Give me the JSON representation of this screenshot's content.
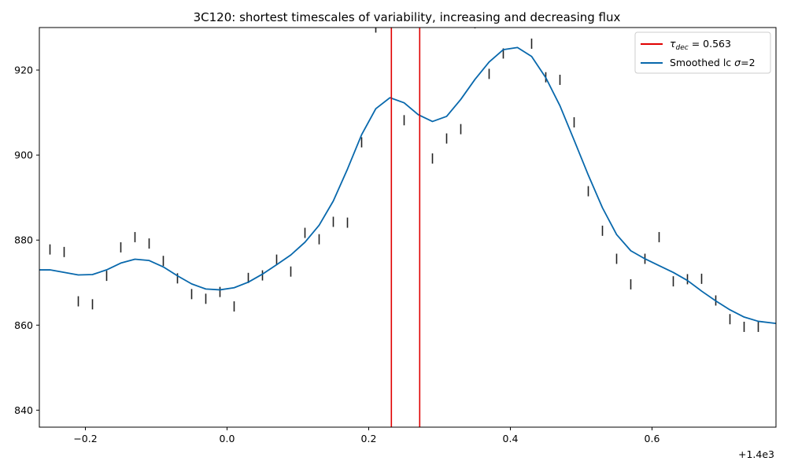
{
  "chart_data": {
    "type": "line",
    "title": "3C120: shortest timescales of variability, increasing and decreasing flux",
    "xlabel": "",
    "ylabel": "",
    "x_offset_label": "+1.4e3",
    "xlim": [
      -0.265,
      0.775
    ],
    "ylim": [
      836,
      930
    ],
    "x_ticks": [
      -0.2,
      0.0,
      0.2,
      0.4,
      0.6
    ],
    "x_tick_labels": [
      "−0.2",
      "0.0",
      "0.2",
      "0.4",
      "0.6"
    ],
    "y_ticks": [
      840,
      860,
      880,
      900,
      920
    ],
    "y_tick_labels": [
      "840",
      "860",
      "880",
      "900",
      "920"
    ],
    "grid": false,
    "legend_position": "top-right",
    "legend": [
      {
        "label_pre": "τ",
        "label_sub": "dec",
        "label_post": " = 0.563",
        "color": "#d62728"
      },
      {
        "label_pre": "Smoothed lc ",
        "label_sym": "σ",
        "label_post": "=2",
        "color": "#1f77b4"
      }
    ],
    "vlines": {
      "x": [
        0.232,
        0.272
      ],
      "color": "#e00000"
    },
    "series": [
      {
        "name": "Smoothed lc σ=2",
        "color": "#0868ac",
        "x": [
          -0.265,
          -0.25,
          -0.21,
          -0.19,
          -0.17,
          -0.15,
          -0.13,
          -0.11,
          -0.09,
          -0.07,
          -0.05,
          -0.03,
          -0.01,
          0.01,
          0.03,
          0.05,
          0.07,
          0.09,
          0.11,
          0.13,
          0.15,
          0.17,
          0.19,
          0.21,
          0.23,
          0.25,
          0.27,
          0.29,
          0.31,
          0.33,
          0.35,
          0.37,
          0.39,
          0.41,
          0.43,
          0.45,
          0.47,
          0.49,
          0.51,
          0.53,
          0.55,
          0.57,
          0.59,
          0.61,
          0.63,
          0.65,
          0.67,
          0.69,
          0.71,
          0.73,
          0.75,
          0.775
        ],
        "y": [
          873.0,
          873.0,
          871.8,
          871.9,
          873.0,
          874.6,
          875.5,
          875.2,
          873.7,
          871.6,
          869.7,
          868.5,
          868.3,
          868.8,
          870.1,
          872.0,
          874.2,
          876.5,
          879.5,
          883.5,
          889.2,
          896.7,
          904.8,
          910.9,
          913.5,
          912.3,
          909.5,
          907.9,
          909.1,
          913.1,
          917.8,
          921.9,
          924.8,
          925.3,
          923.2,
          918.2,
          911.6,
          903.5,
          895.3,
          887.6,
          881.3,
          877.5,
          875.6,
          874.0,
          872.4,
          870.5,
          868.0,
          865.7,
          863.6,
          861.9,
          860.9,
          860.4
        ]
      },
      {
        "name": "",
        "type": "errorbar",
        "color": "#222222",
        "x": [
          -0.25,
          -0.23,
          -0.21,
          -0.19,
          -0.17,
          -0.15,
          -0.13,
          -0.11,
          -0.09,
          -0.07,
          -0.05,
          -0.03,
          -0.01,
          0.01,
          0.03,
          0.05,
          0.07,
          0.09,
          0.11,
          0.13,
          0.15,
          0.17,
          0.19,
          0.21,
          0.25,
          0.29,
          0.31,
          0.33,
          0.35,
          0.37,
          0.39,
          0.43,
          0.45,
          0.47,
          0.49,
          0.51,
          0.53,
          0.55,
          0.57,
          0.59,
          0.61,
          0.63,
          0.65,
          0.67,
          0.69,
          0.71,
          0.73,
          0.75
        ],
        "y": [
          877.8,
          877.2,
          865.6,
          864.9,
          871.6,
          878.3,
          880.7,
          879.2,
          875.1,
          871.0,
          867.3,
          866.2,
          867.8,
          864.4,
          871.1,
          871.7,
          875.4,
          872.6,
          881.7,
          880.2,
          884.3,
          884.1,
          903.0,
          930.0,
          908.2,
          899.2,
          903.9,
          906.1,
          931.0,
          919.1,
          923.9,
          926.2,
          918.3,
          917.7,
          907.7,
          891.5,
          882.2,
          875.6,
          869.6,
          875.6,
          880.7,
          870.3,
          870.8,
          870.9,
          865.8,
          861.4,
          859.6,
          859.6
        ],
        "err": [
          1.2,
          1.2,
          1.2,
          1.2,
          1.2,
          1.2,
          1.2,
          1.2,
          1.2,
          1.2,
          1.2,
          1.2,
          1.2,
          1.2,
          1.2,
          1.2,
          1.2,
          1.2,
          1.2,
          1.2,
          1.2,
          1.2,
          1.2,
          1.2,
          1.2,
          1.2,
          1.2,
          1.2,
          1.2,
          1.2,
          1.2,
          1.2,
          1.2,
          1.2,
          1.2,
          1.2,
          1.2,
          1.2,
          1.2,
          1.2,
          1.2,
          1.2,
          1.2,
          1.2,
          1.2,
          1.2,
          1.2,
          1.2
        ]
      }
    ]
  }
}
